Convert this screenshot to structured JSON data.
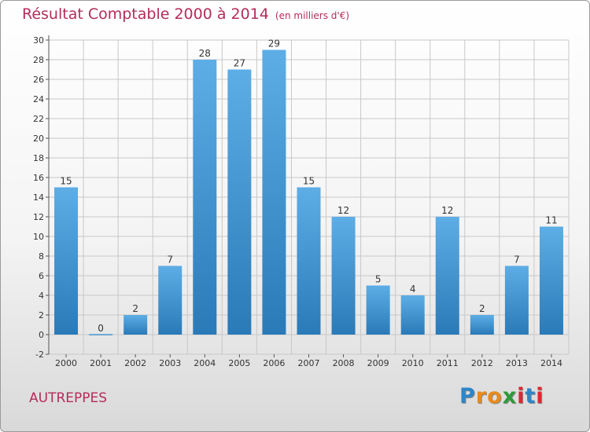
{
  "chart_data": {
    "type": "bar",
    "title": "Résultat Comptable 2000 à 2014",
    "subtitle": "(en milliers d'€)",
    "categories": [
      "2000",
      "2001",
      "2002",
      "2003",
      "2004",
      "2005",
      "2006",
      "2007",
      "2008",
      "2009",
      "2010",
      "2011",
      "2012",
      "2013",
      "2014"
    ],
    "values": [
      15,
      0,
      2,
      7,
      28,
      27,
      29,
      15,
      12,
      5,
      4,
      12,
      2,
      7,
      11
    ],
    "ylim": [
      -2,
      30
    ],
    "yticks": [
      -2,
      0,
      2,
      4,
      6,
      8,
      10,
      12,
      14,
      16,
      18,
      20,
      22,
      24,
      26,
      28,
      30
    ],
    "xlabel": "",
    "ylabel": "",
    "grid": true,
    "colors": {
      "bar_top": "#5dade6",
      "bar_bottom": "#2a7ab8",
      "grid": "#c8c8c8",
      "title": "#b42c5c"
    }
  },
  "footer": {
    "commune": "AUTREPPES",
    "logo_letters": [
      {
        "ch": "P",
        "color": "#2e86c8"
      },
      {
        "ch": "r",
        "color": "#e98a1a"
      },
      {
        "ch": "o",
        "color": "#e98a1a"
      },
      {
        "ch": "x",
        "color": "#2e9a3a"
      },
      {
        "ch": "i",
        "color": "#e2262e"
      },
      {
        "ch": "t",
        "color": "#2e86c8"
      },
      {
        "ch": "i",
        "color": "#e2262e"
      }
    ]
  }
}
